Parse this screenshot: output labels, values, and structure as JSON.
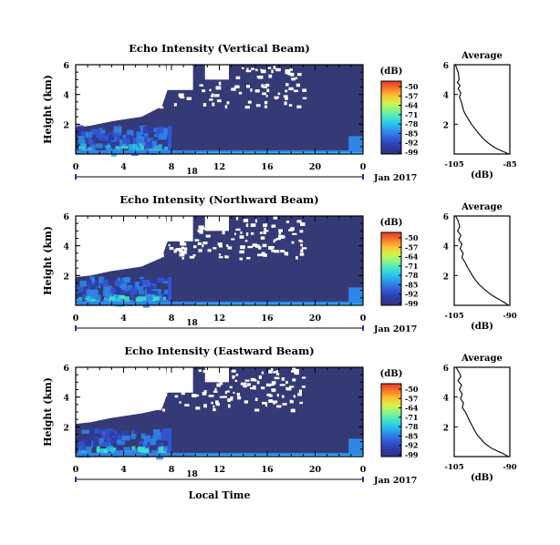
{
  "chart_data": [
    {
      "type": "heatmap",
      "title": "Echo Intensity (Vertical Beam)",
      "ylabel": "Height (km)",
      "xticks": [
        "0",
        "4",
        "8",
        "12",
        "16",
        "20",
        "0"
      ],
      "yticks": [
        "2",
        "4",
        "6"
      ],
      "ylim": [
        0,
        6
      ],
      "date_label": "18",
      "month_label": "Jan 2017",
      "colorbar": {
        "unit": "(dB)",
        "ticks": [
          "-50",
          "-57",
          "-64",
          "-71",
          "-78",
          "-85",
          "-92",
          "-99"
        ],
        "range": [
          -99,
          -50
        ]
      },
      "profile": {
        "title": "Average",
        "xlabel": "(dB)",
        "xticks": [
          "-105",
          "-85"
        ],
        "yticks": [
          "2",
          "4",
          "6"
        ],
        "xlim": [
          -105,
          -85
        ],
        "points": [
          [
            -104.5,
            6.0
          ],
          [
            -104.2,
            5.8
          ],
          [
            -103.6,
            5.5
          ],
          [
            -103.2,
            5.0
          ],
          [
            -103.9,
            4.8
          ],
          [
            -102.9,
            4.6
          ],
          [
            -103.6,
            4.4
          ],
          [
            -102.6,
            4.1
          ],
          [
            -103.1,
            3.8
          ],
          [
            -102.4,
            3.5
          ],
          [
            -102.0,
            3.2
          ],
          [
            -101.6,
            2.9
          ],
          [
            -100.8,
            2.6
          ],
          [
            -99.8,
            2.3
          ],
          [
            -98.8,
            2.0
          ],
          [
            -97.6,
            1.7
          ],
          [
            -96.3,
            1.4
          ],
          [
            -94.9,
            1.1
          ],
          [
            -93.2,
            0.8
          ],
          [
            -91.4,
            0.55
          ],
          [
            -89.6,
            0.35
          ],
          [
            -87.8,
            0.2
          ],
          [
            -86.5,
            0.1
          ],
          [
            -85.5,
            0.0
          ]
        ]
      }
    },
    {
      "type": "heatmap",
      "title": "Echo Intensity (Northward Beam)",
      "ylabel": "Height (km)",
      "xticks": [
        "0",
        "4",
        "8",
        "12",
        "16",
        "20",
        "0"
      ],
      "yticks": [
        "2",
        "4",
        "6"
      ],
      "ylim": [
        0,
        6
      ],
      "date_label": "18",
      "month_label": "Jan 2017",
      "colorbar": {
        "unit": "(dB)",
        "ticks": [
          "-50",
          "-57",
          "-64",
          "-71",
          "-78",
          "-85",
          "-92",
          "-99"
        ],
        "range": [
          -99,
          -50
        ]
      },
      "profile": {
        "title": "Average",
        "xlabel": "(dB)",
        "xticks": [
          "-105",
          "-90"
        ],
        "yticks": [
          "2",
          "4",
          "6"
        ],
        "xlim": [
          -105,
          -90
        ],
        "points": [
          [
            -104.6,
            6.0
          ],
          [
            -104.0,
            5.7
          ],
          [
            -103.5,
            5.3
          ],
          [
            -104.1,
            5.0
          ],
          [
            -103.2,
            4.7
          ],
          [
            -103.8,
            4.4
          ],
          [
            -102.9,
            4.1
          ],
          [
            -103.4,
            3.8
          ],
          [
            -102.6,
            3.5
          ],
          [
            -102.9,
            3.2
          ],
          [
            -102.1,
            2.9
          ],
          [
            -101.5,
            2.6
          ],
          [
            -100.8,
            2.3
          ],
          [
            -100.1,
            2.0
          ],
          [
            -99.3,
            1.7
          ],
          [
            -98.3,
            1.4
          ],
          [
            -97.0,
            1.1
          ],
          [
            -95.5,
            0.8
          ],
          [
            -94.0,
            0.55
          ],
          [
            -92.5,
            0.35
          ],
          [
            -91.2,
            0.15
          ],
          [
            -90.4,
            0.0
          ]
        ]
      }
    },
    {
      "type": "heatmap",
      "title": "Echo Intensity (Eastward Beam)",
      "ylabel": "Height (km)",
      "xticks": [
        "0",
        "4",
        "8",
        "12",
        "16",
        "20",
        "0"
      ],
      "yticks": [
        "2",
        "4",
        "6"
      ],
      "ylim": [
        0,
        6
      ],
      "date_label": "18",
      "month_label": "Jan 2017",
      "xlabel": "Local Time",
      "colorbar": {
        "unit": "(dB)",
        "ticks": [
          "-50",
          "-57",
          "-64",
          "-71",
          "-78",
          "-85",
          "-92",
          "-99"
        ],
        "range": [
          -99,
          -50
        ]
      },
      "profile": {
        "title": "Average",
        "xlabel": "(dB)",
        "xticks": [
          "-105",
          "-90"
        ],
        "yticks": [
          "2",
          "4",
          "6"
        ],
        "xlim": [
          -105,
          -90
        ],
        "points": [
          [
            -104.5,
            6.0
          ],
          [
            -103.8,
            5.7
          ],
          [
            -103.2,
            5.4
          ],
          [
            -104.0,
            5.1
          ],
          [
            -103.0,
            4.8
          ],
          [
            -103.6,
            4.5
          ],
          [
            -102.8,
            4.2
          ],
          [
            -103.3,
            3.9
          ],
          [
            -102.5,
            3.6
          ],
          [
            -102.8,
            3.3
          ],
          [
            -102.0,
            3.0
          ],
          [
            -101.4,
            2.7
          ],
          [
            -100.9,
            2.4
          ],
          [
            -100.2,
            2.1
          ],
          [
            -99.6,
            1.8
          ],
          [
            -98.9,
            1.5
          ],
          [
            -97.9,
            1.2
          ],
          [
            -96.8,
            0.9
          ],
          [
            -95.2,
            0.6
          ],
          [
            -93.6,
            0.4
          ],
          [
            -91.8,
            0.2
          ],
          [
            -90.4,
            0.0
          ]
        ]
      }
    }
  ],
  "colors": {
    "scale": [
      "#2e3280",
      "#2e3aa8",
      "#3155d4",
      "#2f86e8",
      "#27bdf0",
      "#3fe6cc",
      "#86f58a",
      "#d4f24a",
      "#fbc233",
      "#f7792a",
      "#e8362a"
    ],
    "background": "#343a76"
  }
}
